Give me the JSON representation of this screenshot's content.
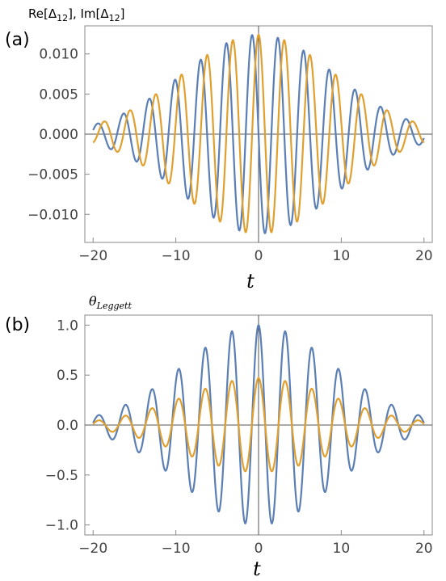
{
  "colors": {
    "series1": "#5b7fb5",
    "series2": "#e0a030",
    "frame": "#888888",
    "axis": "#555555"
  },
  "chart_data": [
    {
      "panel_label": "(a)",
      "type": "line",
      "ylabel_main": "Re[Δ",
      "ylabel_sub1": "12",
      "ylabel_mid": "], Im[Δ",
      "ylabel_sub2": "12",
      "ylabel_end": "]",
      "xlabel": "t",
      "xlim": [
        -21,
        21
      ],
      "ylim": [
        -0.0135,
        0.0135
      ],
      "xticks": [
        -20,
        -10,
        0,
        10,
        20
      ],
      "xtick_labels": [
        "−20",
        "−10",
        "0",
        "10",
        "20"
      ],
      "yticks": [
        -0.01,
        -0.005,
        0,
        0.005,
        0.01
      ],
      "ytick_labels": [
        "−0.010",
        "−0.005",
        "0.000",
        "0.005",
        "0.010"
      ],
      "grid": false,
      "series": [
        {
          "amplitude": 0.0124,
          "envelope_width": 9.2,
          "omega": 2.02,
          "phase": 1.5708
        },
        {
          "amplitude": 0.0124,
          "envelope_width": 9.2,
          "omega": 2.02,
          "phase": 0.0
        }
      ]
    },
    {
      "panel_label": "(b)",
      "type": "line",
      "ylabel_main": "θ",
      "ylabel_sub1": "Leggett",
      "xlabel": "t",
      "xlim": [
        -21,
        21
      ],
      "ylim": [
        -1.1,
        1.1
      ],
      "xticks": [
        -20,
        -10,
        0,
        10,
        20
      ],
      "xtick_labels": [
        "−20",
        "−10",
        "0",
        "10",
        "20"
      ],
      "yticks": [
        -1.0,
        -0.5,
        0,
        0.5,
        1.0
      ],
      "ytick_labels": [
        "−1.0",
        "−0.5",
        "0.0",
        "0.5",
        "1.0"
      ],
      "grid": false,
      "series": [
        {
          "amplitude": 1.0,
          "envelope_width": 9.0,
          "omega": 1.95,
          "phase": 0.0,
          "kind": "cos"
        },
        {
          "amplitude": 0.47,
          "envelope_width": 9.0,
          "omega": 1.95,
          "phase": 0.0,
          "kind": "cos"
        }
      ]
    }
  ]
}
